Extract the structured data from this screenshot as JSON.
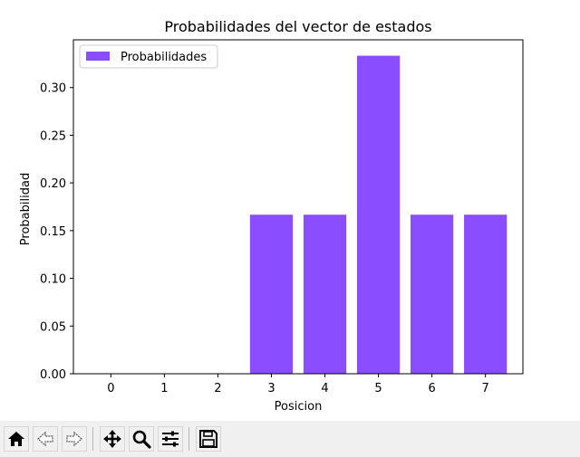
{
  "chart_data": {
    "type": "bar",
    "title": "Probabilidades del vector de estados",
    "xlabel": "Posicion",
    "ylabel": "Probabilidad",
    "categories": [
      "0",
      "1",
      "2",
      "3",
      "4",
      "5",
      "6",
      "7"
    ],
    "values": [
      0,
      0,
      0,
      0.1667,
      0.1667,
      0.3333,
      0.1667,
      0.1667
    ],
    "ylim": [
      0,
      0.35
    ],
    "yticks": [
      "0.00",
      "0.05",
      "0.10",
      "0.15",
      "0.20",
      "0.25",
      "0.30"
    ],
    "series": [
      {
        "name": "Probabilidades",
        "values": [
          0,
          0,
          0,
          0.1667,
          0.1667,
          0.3333,
          0.1667,
          0.1667
        ]
      }
    ],
    "legend": "top-left",
    "grid": false,
    "bar_color": "#8a4dff"
  },
  "toolbar": {
    "buttons": [
      {
        "name": "home-button",
        "icon": "home-icon"
      },
      {
        "name": "back-button",
        "icon": "back-arrow-icon"
      },
      {
        "name": "forward-button",
        "icon": "forward-arrow-icon"
      },
      {
        "name": "pan-button",
        "icon": "move-icon"
      },
      {
        "name": "zoom-button",
        "icon": "magnifier-icon"
      },
      {
        "name": "configure-subplots-button",
        "icon": "sliders-icon"
      },
      {
        "name": "save-button",
        "icon": "floppy-disk-icon"
      }
    ]
  }
}
